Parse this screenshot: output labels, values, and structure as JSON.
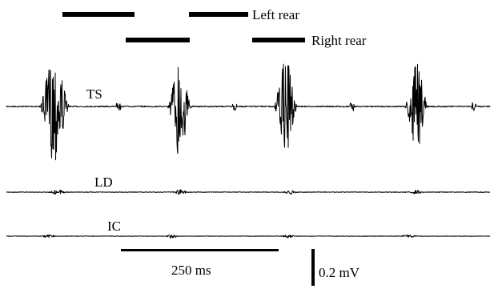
{
  "legend": {
    "left_rear": "Left rear",
    "right_rear": "Right rear"
  },
  "channels": [
    {
      "id": "ts",
      "label": "TS"
    },
    {
      "id": "ld",
      "label": "LD"
    },
    {
      "id": "ic",
      "label": "IC"
    }
  ],
  "scale": {
    "time_label": "250 ms",
    "voltage_label": "0.2 mV"
  }
}
